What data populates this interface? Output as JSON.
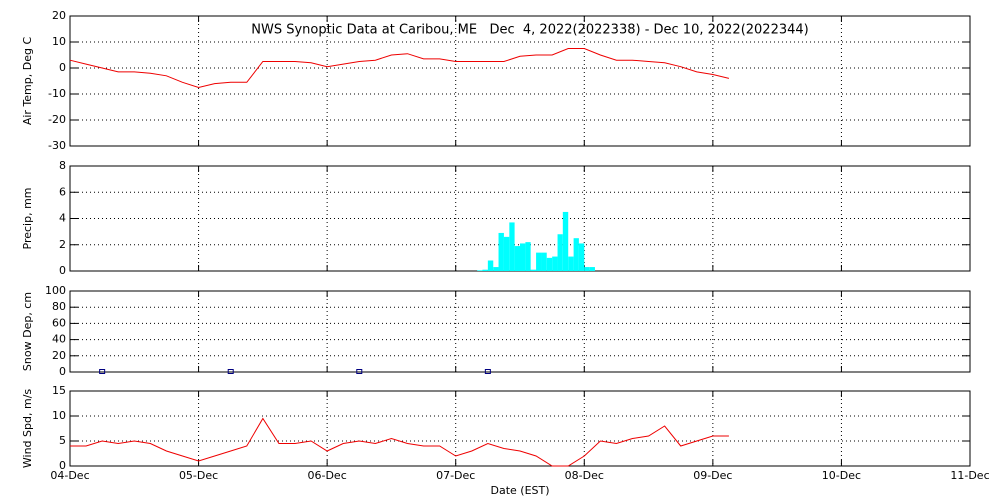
{
  "chart_data": [
    {
      "type": "line",
      "title": "NWS Synoptic Data at Caribou, ME   Dec  4, 2022(2022338) - Dec 10, 2022(2022344)",
      "ylabel": "Air Temp, Deg C",
      "xlim": [
        4,
        11
      ],
      "xticks": [
        4,
        5,
        6,
        7,
        8,
        9,
        10,
        11
      ],
      "ylim": [
        -30,
        20
      ],
      "yticks": [
        -30,
        -20,
        -10,
        0,
        10,
        20
      ],
      "grid": true,
      "series": [
        {
          "color": "#ee0000",
          "x": [
            4.0,
            4.125,
            4.25,
            4.375,
            4.5,
            4.625,
            4.75,
            4.875,
            5.0,
            5.125,
            5.25,
            5.375,
            5.5,
            5.625,
            5.75,
            5.875,
            6.0,
            6.125,
            6.25,
            6.375,
            6.5,
            6.625,
            6.75,
            6.875,
            7.0,
            7.125,
            7.25,
            7.375,
            7.5,
            7.625,
            7.75,
            7.875,
            8.0,
            8.125,
            8.25,
            8.375,
            8.5,
            8.625,
            8.75,
            8.875,
            9.0,
            9.125
          ],
          "values": [
            3,
            1.5,
            0,
            -1.5,
            -1.5,
            -2,
            -3,
            -5.5,
            -7.5,
            -6,
            -5.5,
            -5.5,
            2.5,
            2.5,
            2.5,
            2,
            0.5,
            1.5,
            2.5,
            3,
            5,
            5.5,
            3.5,
            3.5,
            2.5,
            2.5,
            2.5,
            2.5,
            4.5,
            5,
            5,
            7.5,
            7.5,
            5,
            3,
            3,
            2.5,
            2,
            0.5,
            -1.5,
            -2.5,
            -4
          ]
        }
      ]
    },
    {
      "type": "histogram",
      "ylabel": "Precip, mm",
      "xlim": [
        4,
        11
      ],
      "xticks": [
        4,
        5,
        6,
        7,
        8,
        9,
        10,
        11
      ],
      "ylim": [
        0,
        8
      ],
      "yticks": [
        0,
        2,
        4,
        6,
        8
      ],
      "grid": true,
      "color": "#00ffff",
      "bins": [
        7.167,
        7.208,
        7.25,
        7.292,
        7.333,
        7.375,
        7.417,
        7.458,
        7.5,
        7.542,
        7.583,
        7.625,
        7.667,
        7.708,
        7.75,
        7.792,
        7.833,
        7.875,
        7.917,
        7.958,
        8.0,
        8.042,
        8.083
      ],
      "values": [
        0.05,
        0.1,
        0.8,
        0.3,
        2.9,
        2.6,
        3.7,
        1.9,
        2.1,
        2.2,
        0.1,
        1.4,
        1.4,
        1.0,
        1.1,
        2.8,
        4.5,
        1.1,
        2.5,
        2.1,
        0.3,
        0.3
      ]
    },
    {
      "type": "scatter",
      "ylabel": "Snow Dep, cm",
      "xlim": [
        4,
        11
      ],
      "xticks": [
        4,
        5,
        6,
        7,
        8,
        9,
        10,
        11
      ],
      "ylim": [
        0,
        100
      ],
      "yticks": [
        0,
        20,
        40,
        60,
        80,
        100
      ],
      "grid": true,
      "series": [
        {
          "color": "#000080",
          "x": [
            4.25,
            5.25,
            6.25,
            7.25
          ],
          "values": [
            0,
            0,
            0,
            0
          ]
        }
      ]
    },
    {
      "type": "line",
      "ylabel": "Wind Spd, m/s",
      "xlabel": "Date (EST)",
      "xlim": [
        4,
        11
      ],
      "xticks": [
        {
          "value": 4,
          "label": "04-Dec"
        },
        {
          "value": 5,
          "label": "05-Dec"
        },
        {
          "value": 6,
          "label": "06-Dec"
        },
        {
          "value": 7,
          "label": "07-Dec"
        },
        {
          "value": 8,
          "label": "08-Dec"
        },
        {
          "value": 9,
          "label": "09-Dec"
        },
        {
          "value": 10,
          "label": "10-Dec"
        },
        {
          "value": 11,
          "label": "11-Dec"
        }
      ],
      "ylim": [
        0,
        15
      ],
      "yticks": [
        0,
        5,
        10,
        15
      ],
      "grid": true,
      "series": [
        {
          "color": "#ee0000",
          "x": [
            4.0,
            4.125,
            4.25,
            4.375,
            4.5,
            4.625,
            4.75,
            4.875,
            5.0,
            5.125,
            5.25,
            5.375,
            5.5,
            5.625,
            5.75,
            5.875,
            6.0,
            6.125,
            6.25,
            6.375,
            6.5,
            6.625,
            6.75,
            6.875,
            7.0,
            7.125,
            7.25,
            7.375,
            7.5,
            7.625,
            7.75,
            7.875,
            8.0,
            8.125,
            8.25,
            8.375,
            8.5,
            8.625,
            8.75,
            8.875,
            9.0,
            9.125
          ],
          "values": [
            4,
            4,
            5,
            4.5,
            5,
            4.5,
            3,
            2,
            1,
            2,
            3,
            4,
            9.5,
            4.5,
            4.5,
            5,
            3,
            4.5,
            5,
            4.5,
            5.5,
            4.5,
            4,
            4,
            2,
            3,
            4.5,
            3.5,
            3,
            2,
            0,
            0,
            2,
            5,
            4.5,
            5.5,
            6,
            8,
            4,
            5,
            6,
            6
          ]
        }
      ]
    }
  ]
}
